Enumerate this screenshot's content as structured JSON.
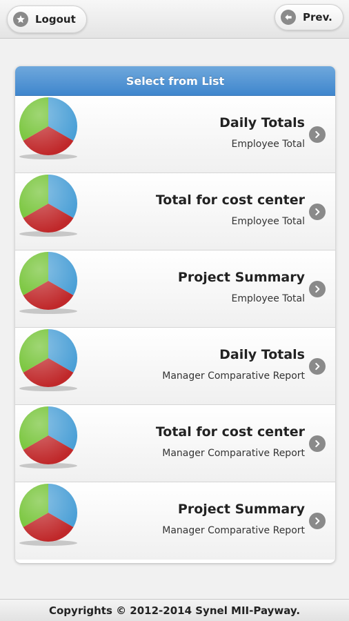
{
  "toolbar": {
    "logout_label": "Logout",
    "logout_icon": "star-icon",
    "prev_label": "Prev.",
    "prev_icon": "back-arrow-icon"
  },
  "list": {
    "header": "Select from List",
    "items": [
      {
        "title": "Daily Totals",
        "subtitle": "Employee Total"
      },
      {
        "title": "Total for cost center",
        "subtitle": "Employee Total"
      },
      {
        "title": "Project Summary",
        "subtitle": "Employee Total"
      },
      {
        "title": "Daily Totals",
        "subtitle": "Manager Comparative Report"
      },
      {
        "title": "Total for cost center",
        "subtitle": "Manager Comparative Report"
      },
      {
        "title": "Project Summary",
        "subtitle": "Manager Comparative Report"
      }
    ]
  },
  "footer": {
    "copyright": "Copyrights © 2012-2014 Synel MII-Payway."
  },
  "colors": {
    "header_blue": "#3f86cd",
    "pie_blue": "#4a9fd6",
    "pie_green": "#6cc02a",
    "pie_red": "#c0282a",
    "icon_gray": "#8a8a8a"
  }
}
